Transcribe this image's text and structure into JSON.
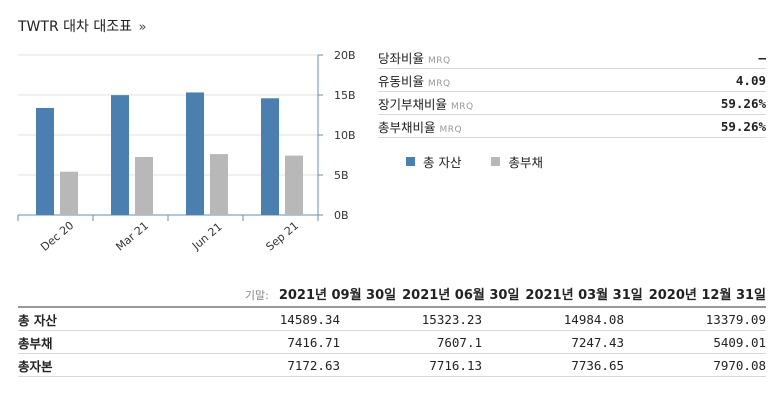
{
  "title": "TWTR 대차 대조표",
  "title_suffix": "»",
  "ratios": [
    {
      "label": "당좌비율",
      "tag": "MRQ",
      "value": "–"
    },
    {
      "label": "유동비율",
      "tag": "MRQ",
      "value": "4.09"
    },
    {
      "label": "장기부채비율",
      "tag": "MRQ",
      "value": "59.26%"
    },
    {
      "label": "총부채비율",
      "tag": "MRQ",
      "value": "59.26%"
    }
  ],
  "legend": [
    {
      "label": "총 자산",
      "color": "#4a7fb0"
    },
    {
      "label": "총부채",
      "color": "#b8b8b8"
    }
  ],
  "chart_data": {
    "type": "bar",
    "categories": [
      "Dec 20",
      "Mar 21",
      "Jun 21",
      "Sep 21"
    ],
    "series": [
      {
        "name": "총 자산",
        "color": "#4a7fb0",
        "values": [
          13.38,
          14.98,
          15.32,
          14.59
        ]
      },
      {
        "name": "총부채",
        "color": "#b8b8b8",
        "values": [
          5.41,
          7.25,
          7.61,
          7.42
        ]
      }
    ],
    "ylim": [
      0,
      20
    ],
    "yticks": [
      "0B",
      "5B",
      "10B",
      "15B",
      "20B"
    ],
    "ytick_values": [
      0,
      5,
      10,
      15,
      20
    ],
    "grid": true
  },
  "table": {
    "period_label": "기말:",
    "dates": [
      "2021년 09월 30일",
      "2021년 06월 30일",
      "2021년 03월 31일",
      "2020년 12월 31일"
    ],
    "rows": [
      {
        "label": "총 자산",
        "values": [
          "14589.34",
          "15323.23",
          "14984.08",
          "13379.09"
        ]
      },
      {
        "label": "총부채",
        "values": [
          "7416.71",
          "7607.1",
          "7247.43",
          "5409.01"
        ]
      },
      {
        "label": "총자본",
        "values": [
          "7172.63",
          "7716.13",
          "7736.65",
          "7970.08"
        ]
      }
    ]
  }
}
